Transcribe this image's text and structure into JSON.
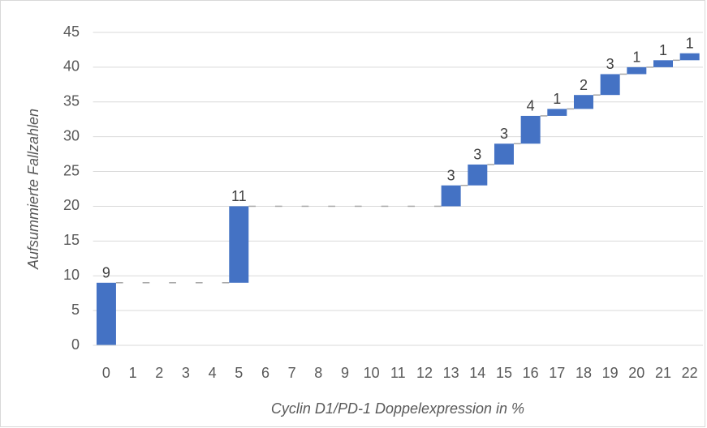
{
  "chart_data": {
    "type": "waterfall",
    "x_label": "Cyclin D1/PD-1 Doppelexpression in %",
    "y_label": "Aufsummierte Fallzahlen",
    "categories": [
      "0",
      "1",
      "2",
      "3",
      "4",
      "5",
      "6",
      "7",
      "8",
      "9",
      "10",
      "11",
      "12",
      "13",
      "14",
      "15",
      "16",
      "17",
      "18",
      "19",
      "20",
      "21",
      "22"
    ],
    "values": [
      9,
      0,
      0,
      0,
      0,
      11,
      0,
      0,
      0,
      0,
      0,
      0,
      0,
      3,
      3,
      3,
      4,
      1,
      2,
      3,
      1,
      1,
      1
    ],
    "color": "#4472c4",
    "ylim": [
      0,
      45
    ],
    "yticks": [
      0,
      5,
      10,
      15,
      20,
      25,
      30,
      35,
      40,
      45
    ],
    "grid": true
  }
}
